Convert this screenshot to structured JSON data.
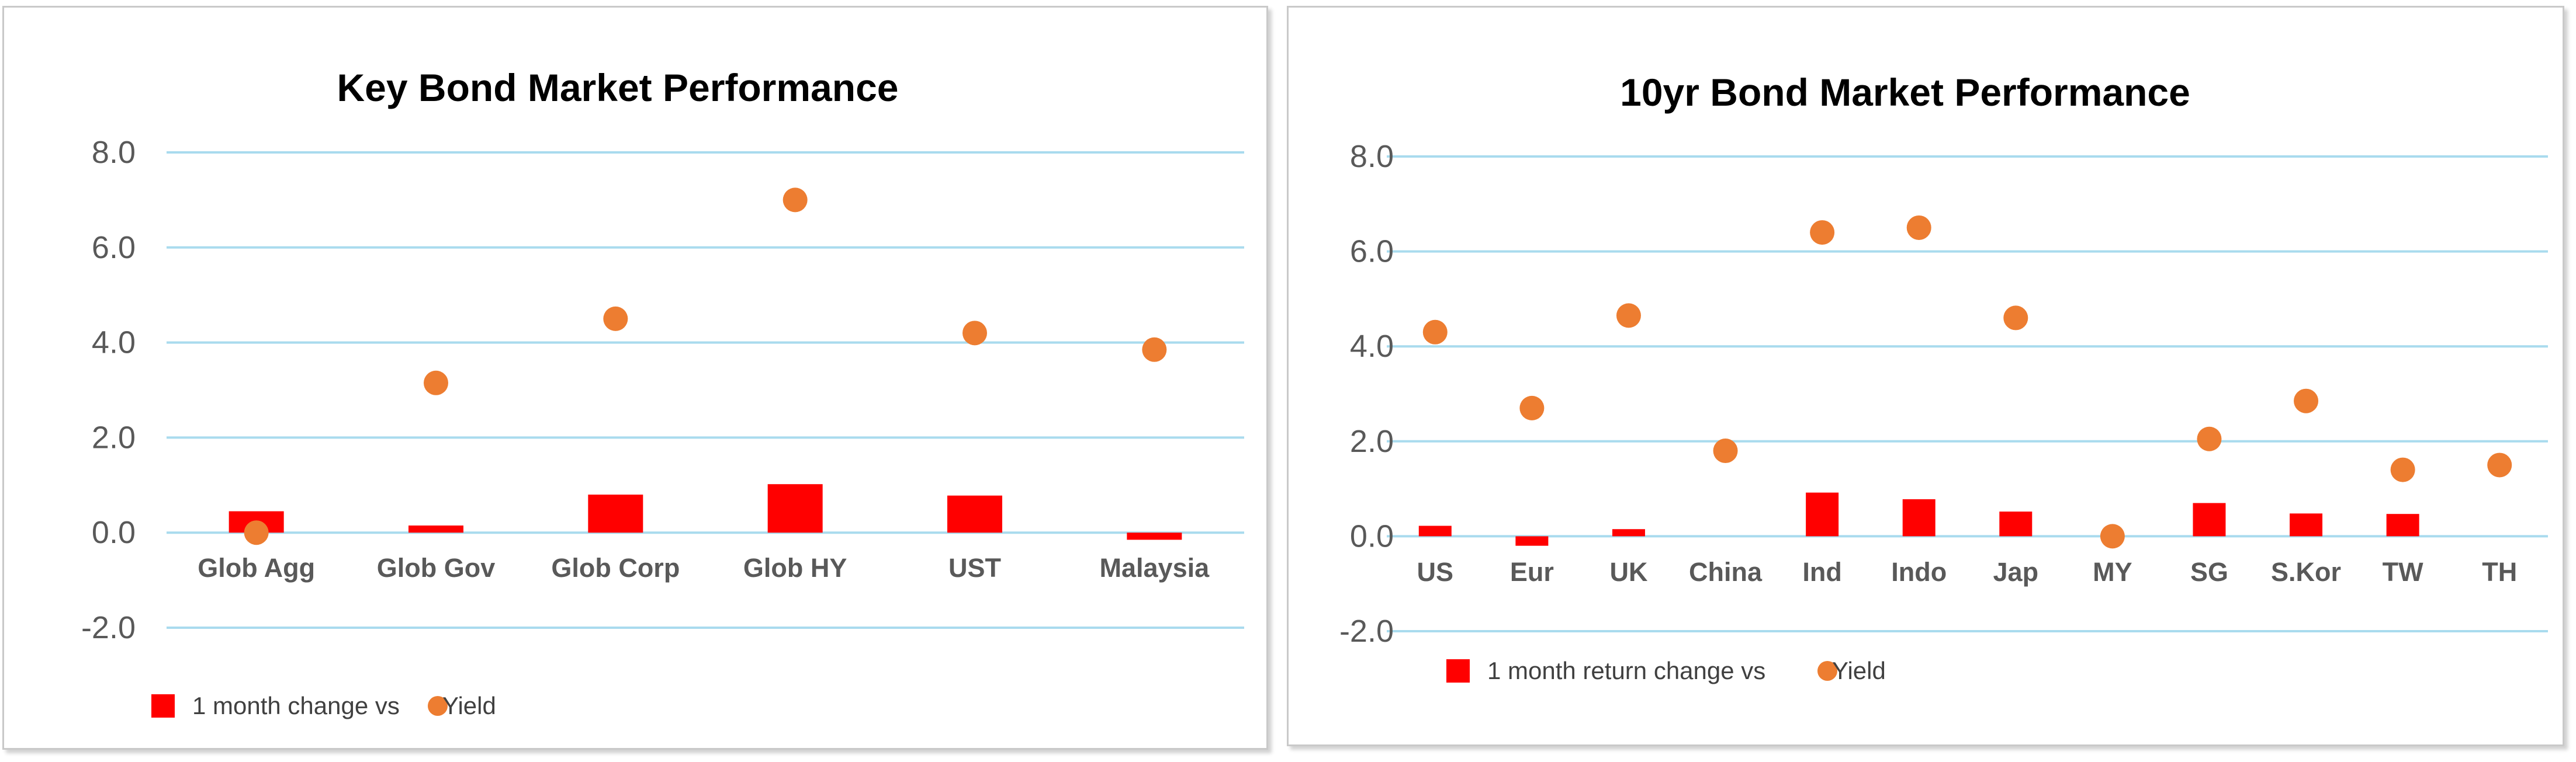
{
  "chart_data": [
    {
      "type": "bar",
      "title": "Key  Bond Market Performance",
      "xlabel": "",
      "ylabel": "",
      "ylim": [
        -2.0,
        8.0
      ],
      "yticks": [
        "8.0",
        "6.0",
        "4.0",
        "2.0",
        "0.0",
        "-2.0"
      ],
      "grid": true,
      "legend_position": "bottom-left",
      "categories": [
        "Glob Agg",
        "Glob Gov",
        "Glob Corp",
        "Glob HY",
        "UST",
        "Malaysia"
      ],
      "series": [
        {
          "name": "1 month change vs",
          "type": "bar",
          "color": "#ff0000",
          "values": [
            0.45,
            0.15,
            0.8,
            1.02,
            0.78,
            -0.15
          ]
        },
        {
          "name": "Yield",
          "type": "scatter",
          "color": "#ed7d31",
          "values": [
            0.0,
            3.15,
            4.5,
            7.0,
            4.2,
            3.85
          ]
        }
      ]
    },
    {
      "type": "bar",
      "title": "10yr Bond Market Performance",
      "xlabel": "",
      "ylabel": "",
      "ylim": [
        -2.0,
        8.0
      ],
      "yticks": [
        "8.0",
        "6.0",
        "4.0",
        "2.0",
        "0.0",
        "-2.0"
      ],
      "grid": true,
      "legend_position": "bottom-left",
      "categories": [
        "US",
        "Eur",
        "UK",
        "China",
        "Ind",
        "Indo",
        "Jap",
        "MY",
        "SG",
        "S.Kor",
        "TW",
        "TH"
      ],
      "series": [
        {
          "name": "1 month return change vs",
          "type": "bar",
          "color": "#ff0000",
          "values": [
            0.22,
            -0.2,
            0.15,
            0.0,
            0.92,
            0.78,
            0.52,
            0.0,
            0.7,
            0.48,
            0.47,
            0.0
          ]
        },
        {
          "name": "Yield",
          "type": "scatter",
          "color": "#ed7d31",
          "values": [
            4.3,
            2.7,
            4.65,
            1.8,
            6.4,
            6.5,
            4.6,
            0.0,
            2.05,
            2.85,
            1.4,
            1.5
          ]
        }
      ]
    }
  ],
  "colors": {
    "grid": "#a9dbee",
    "bar": "#ff0000",
    "dot": "#ed7d31",
    "axis_text": "#595959"
  }
}
